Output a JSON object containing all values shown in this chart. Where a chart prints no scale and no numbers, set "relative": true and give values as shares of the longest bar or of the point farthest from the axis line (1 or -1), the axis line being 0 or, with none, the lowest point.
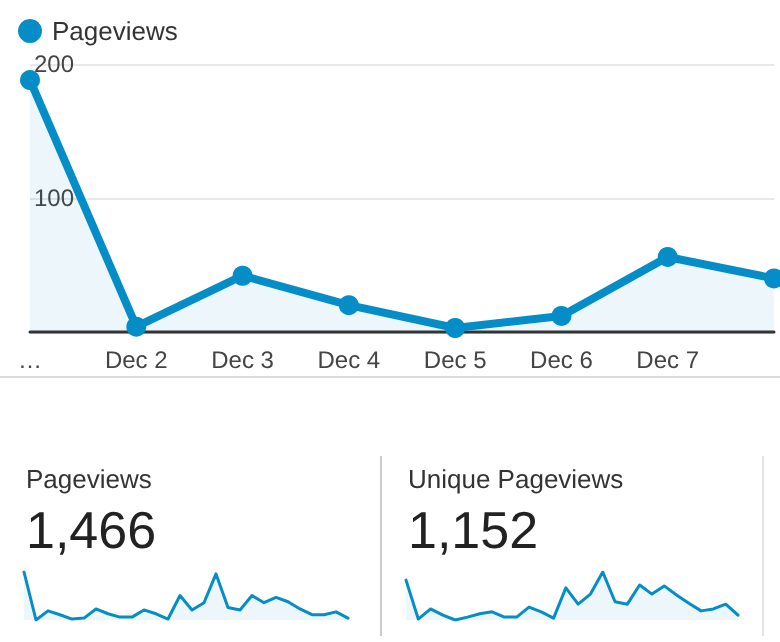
{
  "chart_data": [
    {
      "type": "area",
      "categories": [
        "…",
        "Dec 2",
        "Dec 3",
        "Dec 4",
        "Dec 5",
        "Dec 6",
        "Dec 7",
        null
      ],
      "series": [
        {
          "name": "Pageviews",
          "color": "#058dc7",
          "values": [
            188,
            4,
            42,
            20,
            3,
            12,
            56,
            40
          ]
        }
      ],
      "ylim": [
        0,
        200
      ],
      "yticks": [
        {
          "value": 0,
          "label": null
        },
        100,
        200
      ],
      "grid": "y",
      "legend": "top left",
      "marker": "circle"
    },
    {
      "type": "area",
      "title": "Pageviews",
      "subtitle": "1,466",
      "relative": true,
      "marker": "none",
      "color": "#058dc7",
      "categories": [
        null,
        null,
        null,
        null,
        null,
        null,
        null,
        null,
        null,
        null,
        null,
        null,
        null,
        null,
        null,
        null,
        null,
        null,
        null,
        null,
        null,
        null,
        null,
        null,
        null,
        null,
        null,
        null
      ],
      "values": [
        1,
        0,
        0.19,
        0.11,
        0.02,
        0.04,
        0.23,
        0.13,
        0.06,
        0.06,
        0.21,
        0.13,
        0.02,
        0.51,
        0.21,
        0.36,
        0.96,
        0.26,
        0.21,
        0.51,
        0.36,
        0.47,
        0.38,
        0.23,
        0.11,
        0.11,
        0.17,
        0.04
      ]
    },
    {
      "type": "area",
      "title": "Unique Pageviews",
      "subtitle": "1,152",
      "relative": true,
      "marker": "none",
      "color": "#058dc7",
      "categories": [
        null,
        null,
        null,
        null,
        null,
        null,
        null,
        null,
        null,
        null,
        null,
        null,
        null,
        null,
        null,
        null,
        null,
        null,
        null,
        null,
        null,
        null,
        null,
        null,
        null,
        null,
        null,
        null
      ],
      "values": [
        0.83,
        0.02,
        0.23,
        0.1,
        0,
        0.06,
        0.13,
        0.17,
        0.06,
        0.06,
        0.27,
        0.17,
        0.04,
        0.67,
        0.33,
        0.54,
        1,
        0.38,
        0.33,
        0.73,
        0.54,
        0.71,
        0.52,
        0.35,
        0.19,
        0.23,
        0.33,
        0.1
      ]
    }
  ]
}
